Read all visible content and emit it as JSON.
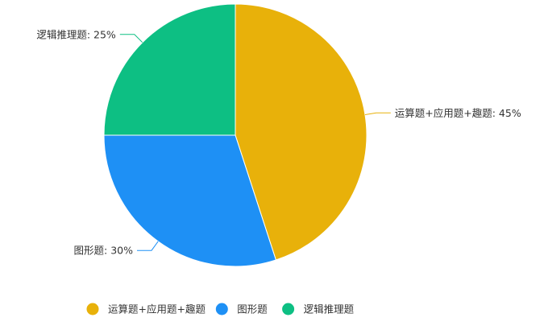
{
  "chart_data": {
    "type": "pie",
    "categories": [
      "运算题+应用题+趣题",
      "图形题",
      "逻辑推理题"
    ],
    "values": [
      45,
      30,
      25
    ],
    "unit": "%",
    "colors": [
      "#E8B10A",
      "#1E90F5",
      "#0DBF83"
    ],
    "start_angle_deg": 0,
    "direction": "clockwise",
    "data_labels": [
      "运算题+应用题+趣题: 45%",
      "图形题: 30%",
      "逻辑推理题: 25%"
    ],
    "legend": {
      "position": "bottom",
      "entries": [
        "运算题+应用题+趣题",
        "图形题",
        "逻辑推理题"
      ]
    }
  }
}
